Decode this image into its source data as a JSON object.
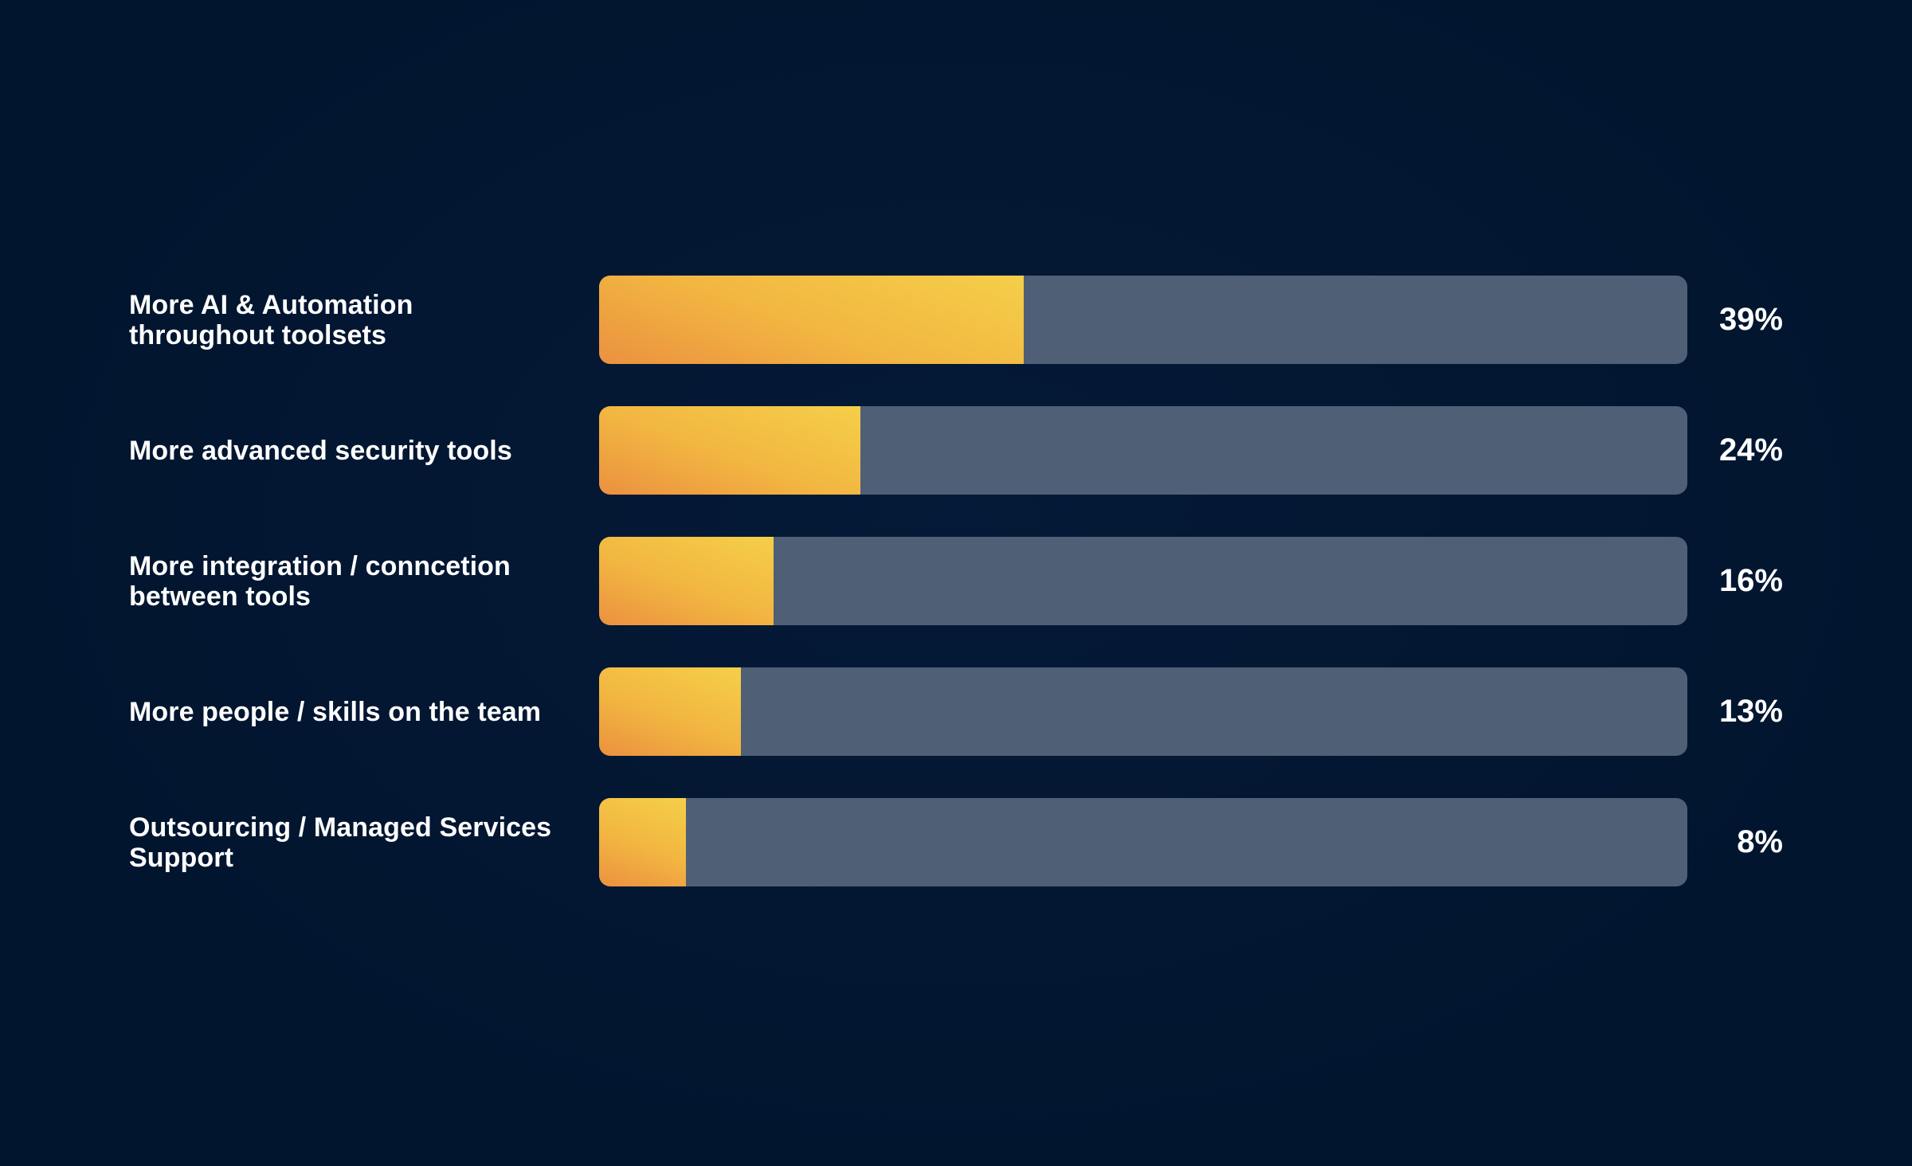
{
  "chart_data": {
    "type": "bar",
    "orientation": "horizontal",
    "title": "",
    "xlabel": "",
    "ylabel": "",
    "xlim": [
      0,
      100
    ],
    "categories": [
      "More AI & Automation\nthroughout toolsets",
      "More advanced security tools",
      "More integration / conncetion\nbetween tools",
      "More people / skills on the team",
      "Outsourcing / Managed Services\nSupport"
    ],
    "values": [
      39,
      24,
      16,
      13,
      8
    ],
    "value_labels": [
      "39%",
      "24%",
      "16%",
      "13%",
      "8%"
    ],
    "grid": false,
    "legend": "none",
    "colors": {
      "background": "#02152f",
      "track": "#4f5f76",
      "fill_start": "#eb9140",
      "fill_end": "#f5cf49",
      "text": "#ffffff"
    }
  }
}
